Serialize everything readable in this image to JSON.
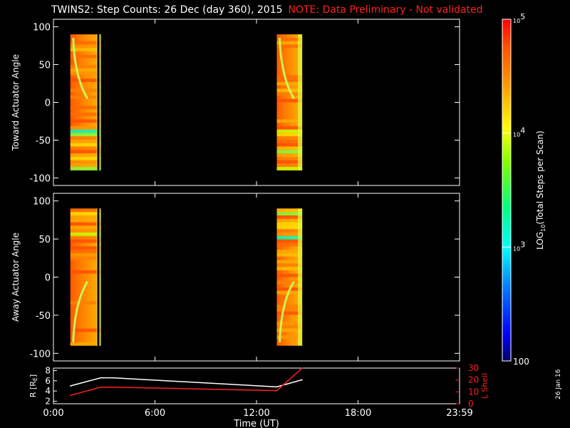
{
  "title": "TWINS2: Step Counts: 26 Dec (day 360), 2015",
  "note": "NOTE: Data Preliminary - Not validated",
  "date_stamp": "26 Jan 16",
  "chart_data": [
    {
      "type": "heatmap",
      "ylabel": "Toward Actuator Angle",
      "ylim": [
        -110,
        110
      ],
      "yticks": [
        100,
        50,
        0,
        -50,
        -100
      ],
      "xlim": [
        0,
        24
      ],
      "intervals": [
        [
          1.0,
          2.8
        ],
        [
          13.2,
          14.7
        ]
      ],
      "color_scale": "log"
    },
    {
      "type": "heatmap",
      "ylabel": "Away Actuator Angle",
      "ylim": [
        -110,
        110
      ],
      "yticks": [
        100,
        50,
        0,
        -50,
        -100
      ],
      "xlim": [
        0,
        24
      ],
      "intervals": [
        [
          1.0,
          2.8
        ],
        [
          13.2,
          14.7
        ]
      ],
      "color_scale": "log"
    },
    {
      "type": "line",
      "xlabel": "Time (UT)",
      "xticks": [
        "0:00",
        "6:00",
        "12:00",
        "18:00",
        "23:59"
      ],
      "xlim": [
        0,
        24
      ],
      "left_axis": {
        "label": "R [RE]",
        "label_main": "R [R",
        "label_sub": "E",
        "label_end": "]",
        "ticks": [
          2,
          4,
          6,
          8
        ],
        "ylim": [
          1.5,
          8.5
        ]
      },
      "right_axis": {
        "label": "L Shell",
        "ticks": [
          0,
          10,
          20,
          30
        ],
        "ylim": [
          0,
          30
        ],
        "color": "#ff2020"
      },
      "series": [
        {
          "axis": "left",
          "color": "#ffffff",
          "x": [
            1.0,
            2.8,
            3.5,
            13.2,
            14.7
          ],
          "y": [
            5.0,
            6.6,
            6.6,
            4.8,
            6.2
          ]
        },
        {
          "axis": "right",
          "color": "#ff2020",
          "x": [
            1.0,
            2.8,
            3.5,
            13.2,
            14.7
          ],
          "y": [
            7,
            14,
            14,
            11,
            30
          ]
        }
      ]
    }
  ],
  "colorbar": {
    "label": "LOG10(Total Steps per Scan)",
    "label_pre": "LOG",
    "label_sub": "10",
    "label_post": "(Total Steps per Scan)",
    "min": 100,
    "max": 100000,
    "ticks": [
      {
        "value": 100000,
        "base": "10",
        "exp": "5"
      },
      {
        "value": 10000,
        "base": "10",
        "exp": "4"
      },
      {
        "value": 1000,
        "base": "10",
        "exp": "3"
      },
      {
        "value": 100,
        "text": "100"
      }
    ]
  }
}
